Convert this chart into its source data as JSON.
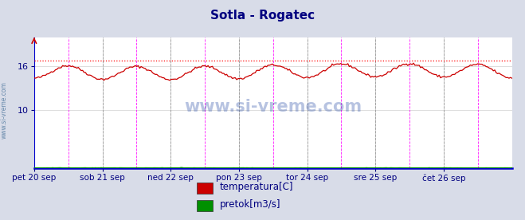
{
  "title": "Sotla - Rogatec",
  "title_color": "#000080",
  "title_fontsize": 11,
  "bg_color": "#d8dce8",
  "plot_bg_color": "#ffffff",
  "grid_color": "#d0d0d0",
  "tick_color": "#000080",
  "watermark": "www.si-vreme.com",
  "watermark_color": "#000080",
  "side_label": "www.si-vreme.com",
  "ylim": [
    2,
    20
  ],
  "yticks": [
    10,
    16
  ],
  "xticklabels": [
    "pet 20 sep",
    "sob 21 sep",
    "ned 22 sep",
    "pon 23 sep",
    "tor 24 sep",
    "sre 25 sep",
    "čet 26 sep"
  ],
  "n_points": 336,
  "temp_color": "#cc0000",
  "temp_max_line_color": "#ff0000",
  "temp_max_value": 16.85,
  "pretok_color": "#009000",
  "vline_color_magenta": "#ff00ff",
  "vline_color_gray": "#888888",
  "legend_entries": [
    "temperatura[C]",
    "pretok[m3/s]"
  ],
  "legend_colors": [
    "#cc0000",
    "#009000"
  ],
  "bottom_axis_color": "#0000cc",
  "right_axis_color": "#cc0000",
  "left_axis_color": "#0000cc",
  "pretok_base": 2.05
}
